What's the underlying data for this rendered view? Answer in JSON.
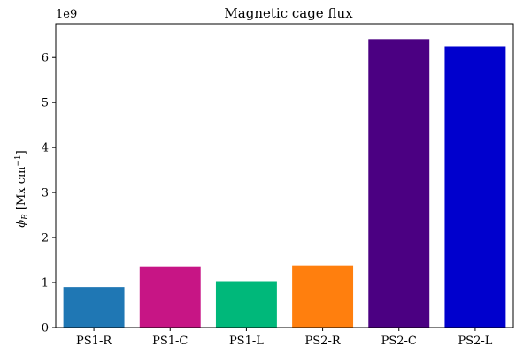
{
  "chart_data": {
    "type": "bar",
    "title": "Magnetic cage flux",
    "ylabel_symbol": "ϕ",
    "ylabel_subscript": "B",
    "ylabel_units_prefix": " [Mx cm",
    "ylabel_superscript": "−1",
    "ylabel_units_suffix": "]",
    "offset_text": "1e9",
    "categories": [
      "PS1-R",
      "PS1-C",
      "PS1-L",
      "PS2-R",
      "PS2-C",
      "PS2-L"
    ],
    "values": [
      900000000,
      1360000000,
      1030000000,
      1380000000,
      6410000000,
      6250000000
    ],
    "colors": [
      "#1f77b4",
      "#c71585",
      "#00b87a",
      "#ff7f0e",
      "#4b0082",
      "#0000cd"
    ],
    "ylim": [
      0,
      6750000000
    ],
    "yticks": [
      0,
      1000000000,
      2000000000,
      3000000000,
      4000000000,
      5000000000,
      6000000000
    ],
    "ytick_labels": [
      "0",
      "1",
      "2",
      "3",
      "4",
      "5",
      "6"
    ],
    "grid": false,
    "legend": "none"
  }
}
